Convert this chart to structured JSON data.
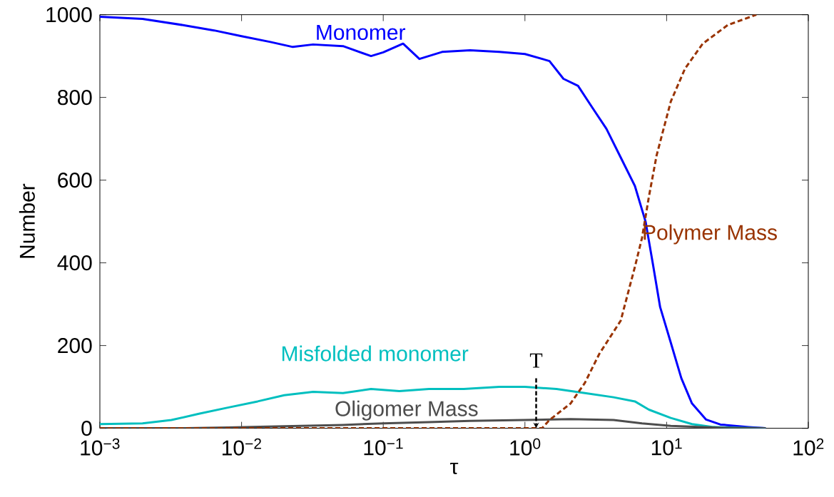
{
  "chart_data": {
    "type": "line",
    "xlabel": "τ",
    "ylabel": "Number",
    "log": "x",
    "xlim": [
      0.001,
      100
    ],
    "ylim": [
      0,
      1000
    ],
    "xticks": [
      {
        "value": 0.001,
        "label": "10$^{−3}$"
      },
      {
        "value": 0.01,
        "label": "10$^{−2}$"
      },
      {
        "value": 0.1,
        "label": "10$^{−1}$"
      },
      {
        "value": 1,
        "label": "10$^{0}$"
      },
      {
        "value": 10,
        "label": "10$^{1}$"
      },
      {
        "value": 100,
        "label": "10$^{2}$"
      }
    ],
    "yticks": [
      0,
      200,
      400,
      600,
      800,
      1000
    ],
    "series": [
      {
        "name": "Monomer",
        "color": "#0000ff",
        "x": [
          0.001,
          0.002,
          0.004,
          0.0064,
          0.01,
          0.016,
          0.023,
          0.032,
          0.052,
          0.082,
          0.1,
          0.138,
          0.18,
          0.26,
          0.41,
          0.66,
          1,
          1.49,
          1.87,
          2.37,
          2.98,
          3.76,
          4.74,
          5.97,
          7.1,
          8.0,
          9.0,
          10.7,
          12.7,
          15.1,
          19,
          24,
          38,
          50
        ],
        "values": [
          995,
          990,
          974,
          962,
          948,
          934,
          922,
          928,
          924,
          900,
          909,
          930,
          893,
          910,
          914,
          910,
          905,
          888,
          845,
          828,
          776,
          724,
          655,
          586,
          500,
          397,
          293,
          207,
          121,
          60,
          21,
          9,
          3,
          0
        ]
      },
      {
        "name": "Misfolded monomer",
        "color": "#00bfbf",
        "x": [
          0.001,
          0.002,
          0.0032,
          0.005,
          0.008,
          0.013,
          0.02,
          0.032,
          0.052,
          0.082,
          0.13,
          0.21,
          0.37,
          0.66,
          1,
          1.67,
          2.65,
          4.22,
          5.97,
          7.5,
          10.7,
          15.1,
          21.4,
          34,
          50
        ],
        "values": [
          10,
          12,
          20,
          35,
          50,
          65,
          80,
          88,
          85,
          95,
          90,
          95,
          95,
          100,
          100,
          95,
          85,
          75,
          65,
          45,
          25,
          10,
          3,
          1,
          0
        ]
      },
      {
        "name": "Oligomer Mass",
        "color": "#4d4d4d",
        "x": [
          0.001,
          0.004,
          0.008,
          0.02,
          0.052,
          0.1,
          0.21,
          0.41,
          1,
          2.1,
          4.22,
          6.7,
          10.7,
          17,
          27,
          50
        ],
        "values": [
          0,
          0,
          2,
          5,
          8,
          12,
          15,
          18,
          20,
          22,
          20,
          12,
          6,
          3,
          1,
          0
        ]
      },
      {
        "name": "Polymer Mass",
        "color": "#993300",
        "line_style": "dashed",
        "x": [
          0.001,
          1.32,
          1.49,
          2.1,
          2.65,
          3.35,
          4.74,
          5.97,
          6.7,
          7.5,
          8.5,
          10.7,
          13.5,
          18,
          27,
          43
        ],
        "values": [
          0,
          0,
          20,
          60,
          110,
          180,
          260,
          390,
          460,
          560,
          660,
          790,
          870,
          930,
          975,
          1000
        ]
      }
    ],
    "annotations": [
      {
        "text": "T",
        "x": 1.2,
        "y": 0
      }
    ]
  }
}
